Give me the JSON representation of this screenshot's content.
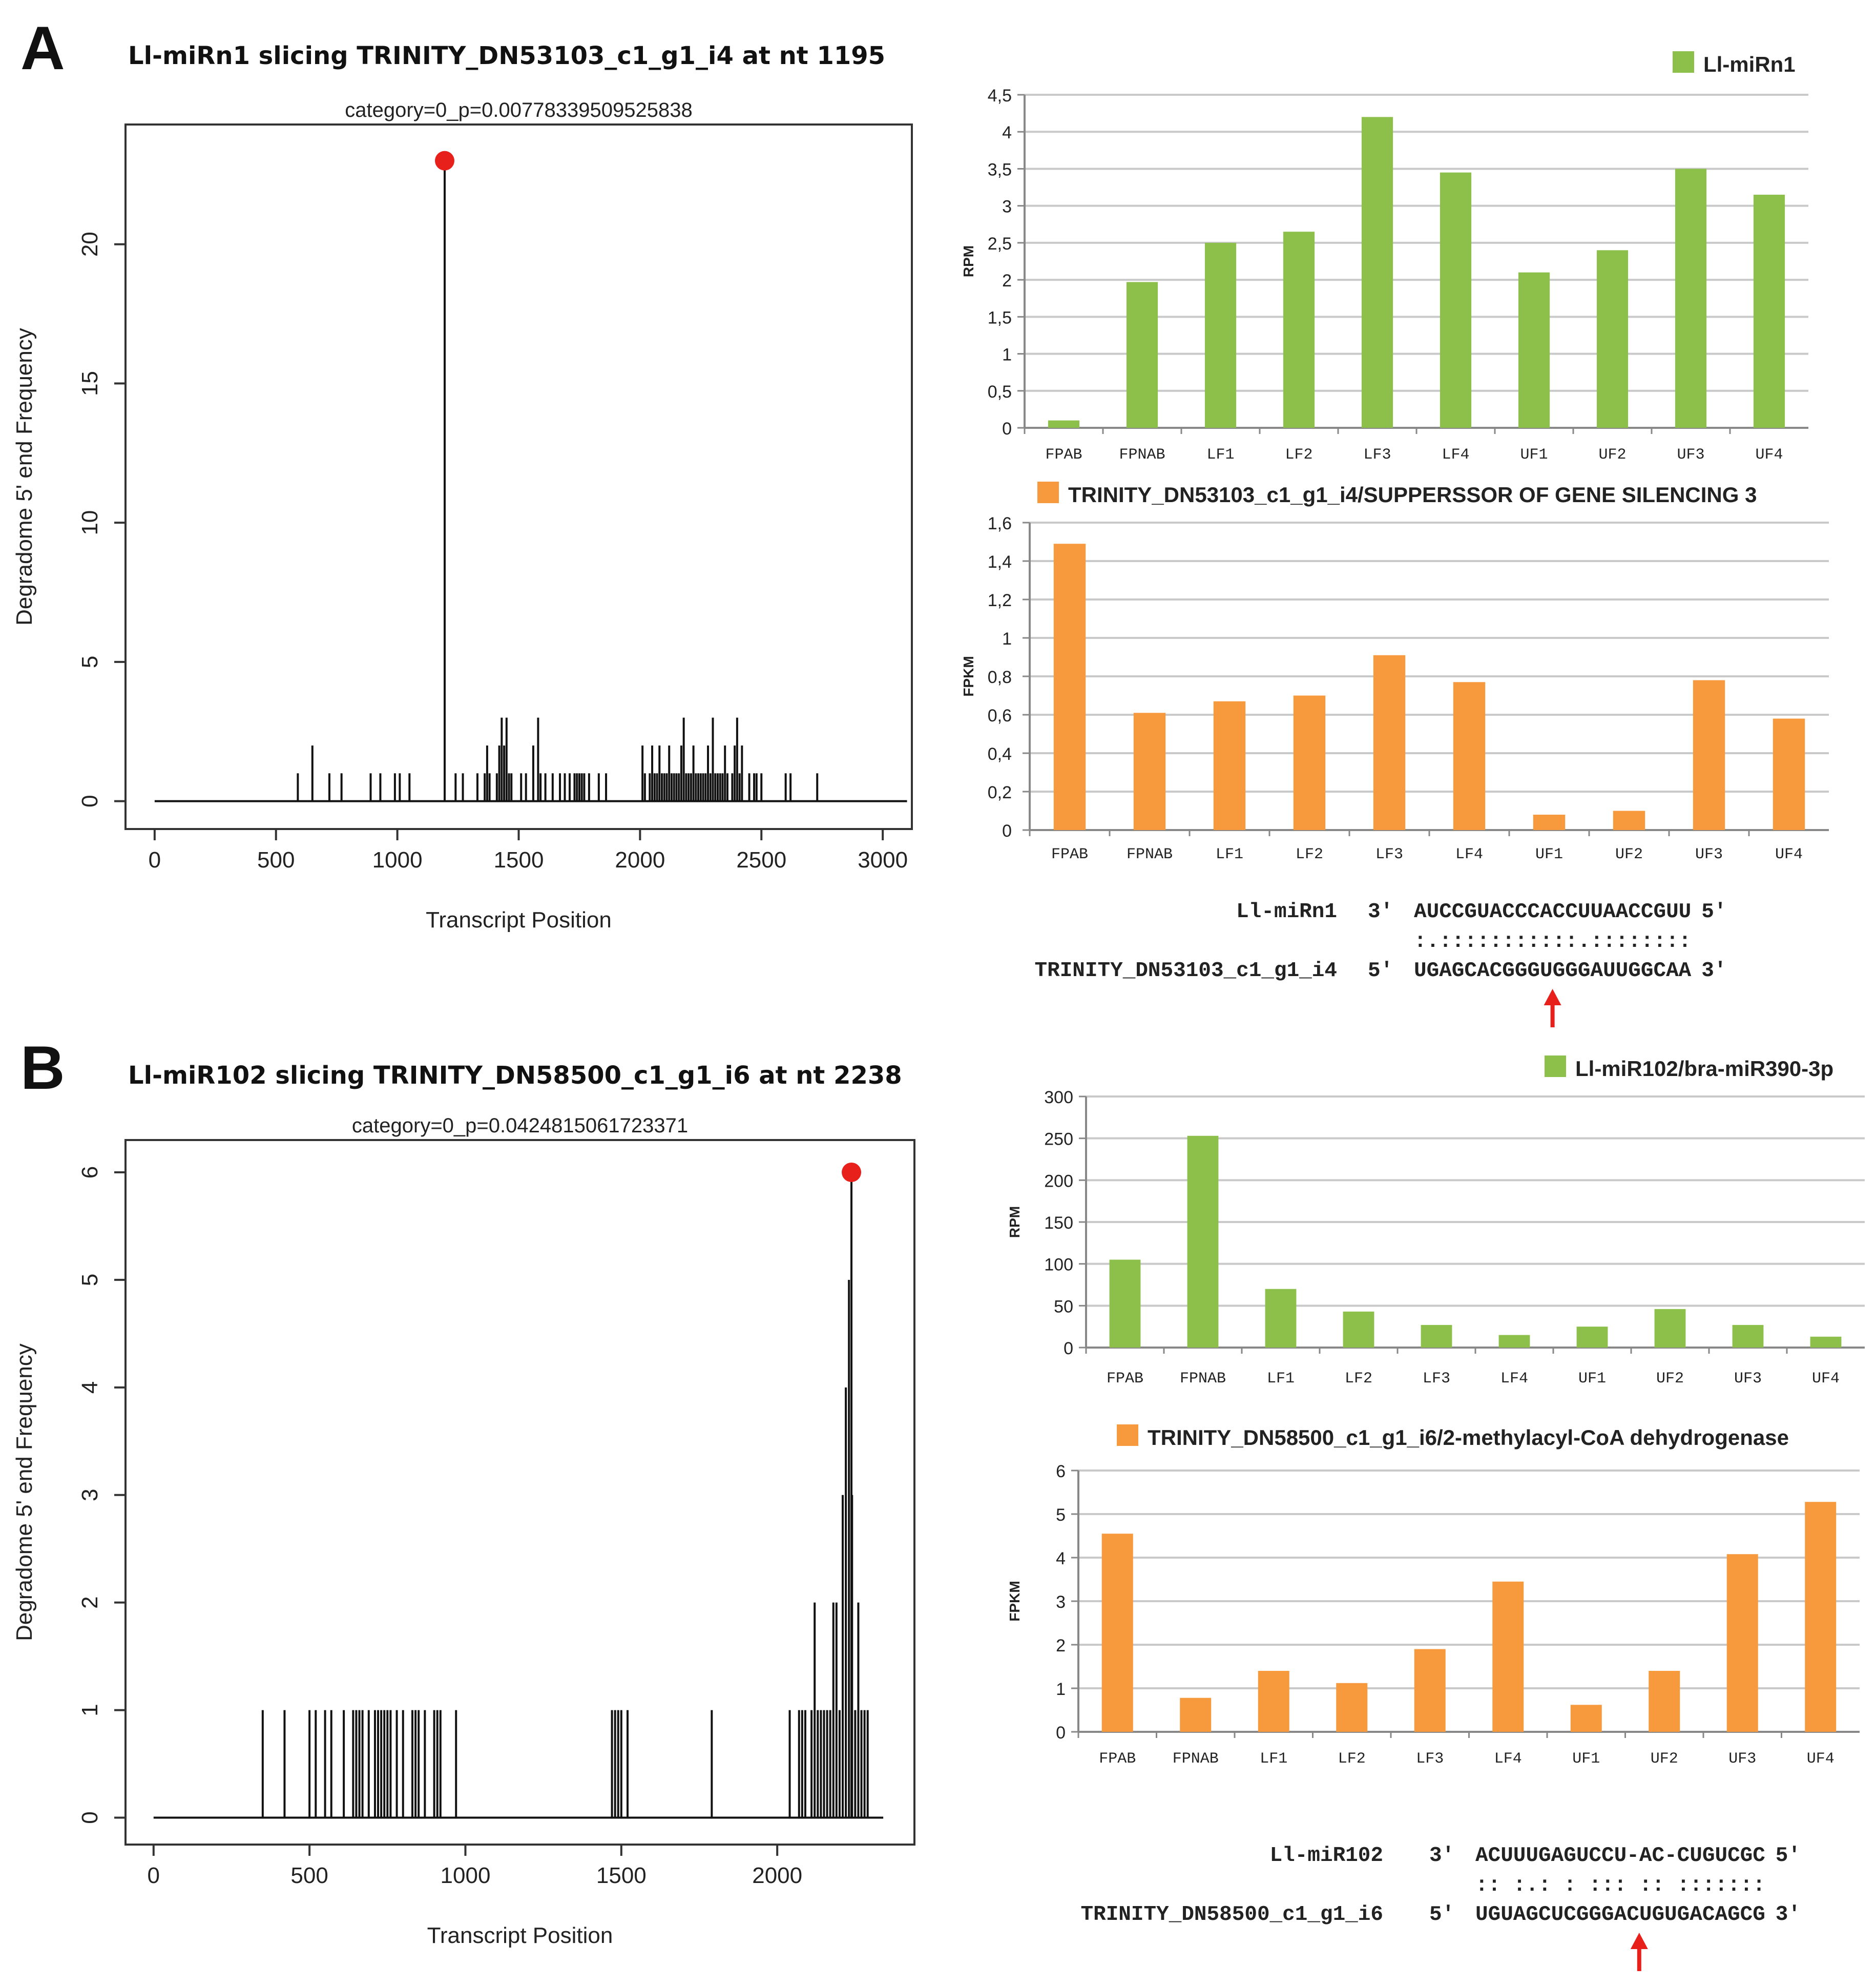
{
  "colors": {
    "green": "#8dc04b",
    "orange": "#f79a3e",
    "red": "#e8201c",
    "black": "#111111",
    "grid": "#c9c9c9"
  },
  "panels": [
    {
      "letter": "A",
      "title": "Ll-miRn1 slicing TRINITY_DN53103_c1_g1_i4 at nt 1195"
    },
    {
      "letter": "B",
      "title": "Ll-miR102 slicing TRINITY_DN58500_c1_g1_i6 at nt 2238"
    }
  ],
  "alignments": [
    {
      "mirna_name": "Ll-miRn1",
      "mirna_end3": "3′",
      "mirna_seq": "AUCCGUACCCACCUUAACCGUU",
      "mirna_end5": "5′",
      "pairing": ":.:::::::::::.::::::::",
      "target_name": "TRINITY_DN53103_c1_g1_i4",
      "target_end5": "5′",
      "target_seq": "UGAGCACGGGUGGGAUUGGCAA",
      "target_end3": "3′",
      "arrow_after_index": 11
    },
    {
      "mirna_name": "Ll-miR102",
      "mirna_end3": "3′",
      "mirna_seq": "ACUUUGAGUCCU-AC-CUGUCGC",
      "mirna_end5": "5′",
      "pairing": ":: :.: : ::: :: :::::::",
      "target_name": "TRINITY_DN58500_c1_g1_i6",
      "target_end5": "5′",
      "target_seq": "UGUAGCUCGGGACUGUGACAGCG",
      "target_end3": "3′",
      "arrow_after_index": 13
    }
  ],
  "chart_data": [
    {
      "id": "A_tplot",
      "type": "bar",
      "title": "category=0_p=0.00778339509525838",
      "xlabel": "Transcript Position",
      "ylabel": "Degradome 5' end Frequency",
      "xlim": [
        -120,
        3120
      ],
      "ylim": [
        -1,
        24.3
      ],
      "xticks": [
        0,
        500,
        1000,
        1500,
        2000,
        2500,
        3000
      ],
      "yticks": [
        0,
        5,
        10,
        15,
        20
      ],
      "baseline_end": 3100,
      "highlight": {
        "x": 1195,
        "y": 23
      },
      "points": [
        [
          590,
          1
        ],
        [
          650,
          2
        ],
        [
          720,
          1
        ],
        [
          770,
          1
        ],
        [
          890,
          1
        ],
        [
          930,
          1
        ],
        [
          990,
          1
        ],
        [
          1010,
          1
        ],
        [
          1050,
          1
        ],
        [
          1195,
          23
        ],
        [
          1240,
          1
        ],
        [
          1270,
          1
        ],
        [
          1330,
          1
        ],
        [
          1360,
          1
        ],
        [
          1370,
          2
        ],
        [
          1380,
          1
        ],
        [
          1410,
          1
        ],
        [
          1420,
          2
        ],
        [
          1430,
          3
        ],
        [
          1440,
          2
        ],
        [
          1450,
          3
        ],
        [
          1460,
          1
        ],
        [
          1470,
          1
        ],
        [
          1510,
          1
        ],
        [
          1530,
          1
        ],
        [
          1560,
          2
        ],
        [
          1580,
          3
        ],
        [
          1590,
          1
        ],
        [
          1610,
          1
        ],
        [
          1640,
          1
        ],
        [
          1670,
          1
        ],
        [
          1690,
          1
        ],
        [
          1710,
          1
        ],
        [
          1730,
          1
        ],
        [
          1740,
          1
        ],
        [
          1750,
          1
        ],
        [
          1760,
          1
        ],
        [
          1770,
          1
        ],
        [
          1790,
          1
        ],
        [
          1830,
          1
        ],
        [
          1860,
          1
        ],
        [
          2010,
          2
        ],
        [
          2020,
          1
        ],
        [
          2040,
          1
        ],
        [
          2050,
          2
        ],
        [
          2060,
          1
        ],
        [
          2070,
          1
        ],
        [
          2080,
          2
        ],
        [
          2090,
          1
        ],
        [
          2100,
          1
        ],
        [
          2110,
          1
        ],
        [
          2120,
          2
        ],
        [
          2130,
          1
        ],
        [
          2140,
          1
        ],
        [
          2150,
          1
        ],
        [
          2160,
          1
        ],
        [
          2170,
          2
        ],
        [
          2180,
          3
        ],
        [
          2190,
          1
        ],
        [
          2200,
          1
        ],
        [
          2210,
          1
        ],
        [
          2220,
          2
        ],
        [
          2230,
          1
        ],
        [
          2240,
          1
        ],
        [
          2250,
          1
        ],
        [
          2260,
          1
        ],
        [
          2270,
          1
        ],
        [
          2280,
          2
        ],
        [
          2290,
          1
        ],
        [
          2300,
          3
        ],
        [
          2310,
          1
        ],
        [
          2320,
          1
        ],
        [
          2330,
          1
        ],
        [
          2340,
          1
        ],
        [
          2350,
          2
        ],
        [
          2360,
          1
        ],
        [
          2380,
          1
        ],
        [
          2390,
          2
        ],
        [
          2400,
          3
        ],
        [
          2410,
          1
        ],
        [
          2420,
          2
        ],
        [
          2450,
          1
        ],
        [
          2470,
          1
        ],
        [
          2480,
          1
        ],
        [
          2500,
          1
        ],
        [
          2600,
          1
        ],
        [
          2620,
          1
        ],
        [
          2730,
          1
        ]
      ]
    },
    {
      "id": "A_mirna",
      "type": "bar",
      "legend": "Ll-miRn1",
      "legend_position": "top-right",
      "ylabel": "RPM",
      "categories": [
        "FPAB",
        "FPNAB",
        "LF1",
        "LF2",
        "LF3",
        "LF4",
        "UF1",
        "UF2",
        "UF3",
        "UF4"
      ],
      "values": [
        0.1,
        1.97,
        2.5,
        2.65,
        4.2,
        3.45,
        2.1,
        2.4,
        3.5,
        3.15
      ],
      "ylim": [
        0,
        4.5
      ],
      "yticks": [
        "0",
        "0,5",
        "1",
        "1,5",
        "2",
        "2,5",
        "3",
        "3,5",
        "4",
        "4,5"
      ],
      "color": "green"
    },
    {
      "id": "A_target",
      "type": "bar",
      "legend": "TRINITY_DN53103_c1_g1_i4/SUPPERSSOR OF GENE SILENCING 3",
      "legend_position": "top",
      "ylabel": "FPKM",
      "categories": [
        "FPAB",
        "FPNAB",
        "LF1",
        "LF2",
        "LF3",
        "LF4",
        "UF1",
        "UF2",
        "UF3",
        "UF4"
      ],
      "values": [
        1.49,
        0.61,
        0.67,
        0.7,
        0.91,
        0.77,
        0.08,
        0.1,
        0.78,
        0.58
      ],
      "ylim": [
        0,
        1.6
      ],
      "yticks": [
        "0",
        "0,2",
        "0,4",
        "0,6",
        "0,8",
        "1",
        "1,2",
        "1,4",
        "1,6"
      ],
      "color": "orange"
    },
    {
      "id": "B_tplot",
      "type": "bar",
      "title": "category=0_p=0.0424815061723371",
      "xlabel": "Transcript Position",
      "ylabel": "Degradome 5' end Frequency",
      "xlim": [
        -90,
        2440
      ],
      "ylim": [
        -0.25,
        6.3
      ],
      "xticks": [
        0,
        500,
        1000,
        1500,
        2000
      ],
      "yticks": [
        0,
        1,
        2,
        3,
        4,
        5,
        6
      ],
      "baseline_end": 2340,
      "highlight": {
        "x": 2238,
        "y": 6
      },
      "points": [
        [
          350,
          1
        ],
        [
          420,
          1
        ],
        [
          500,
          1
        ],
        [
          520,
          1
        ],
        [
          550,
          1
        ],
        [
          570,
          1
        ],
        [
          610,
          1
        ],
        [
          640,
          1
        ],
        [
          650,
          1
        ],
        [
          660,
          1
        ],
        [
          670,
          1
        ],
        [
          690,
          1
        ],
        [
          710,
          1
        ],
        [
          720,
          1
        ],
        [
          730,
          1
        ],
        [
          740,
          1
        ],
        [
          750,
          1
        ],
        [
          760,
          1
        ],
        [
          780,
          1
        ],
        [
          800,
          1
        ],
        [
          830,
          1
        ],
        [
          840,
          1
        ],
        [
          850,
          1
        ],
        [
          870,
          1
        ],
        [
          900,
          1
        ],
        [
          910,
          1
        ],
        [
          920,
          1
        ],
        [
          970,
          1
        ],
        [
          1470,
          1
        ],
        [
          1480,
          1
        ],
        [
          1490,
          1
        ],
        [
          1500,
          1
        ],
        [
          1520,
          1
        ],
        [
          1790,
          1
        ],
        [
          2040,
          1
        ],
        [
          2070,
          1
        ],
        [
          2080,
          1
        ],
        [
          2090,
          1
        ],
        [
          2110,
          1
        ],
        [
          2120,
          2
        ],
        [
          2130,
          1
        ],
        [
          2140,
          1
        ],
        [
          2150,
          1
        ],
        [
          2160,
          1
        ],
        [
          2170,
          1
        ],
        [
          2180,
          2
        ],
        [
          2190,
          2
        ],
        [
          2200,
          1
        ],
        [
          2210,
          3
        ],
        [
          2220,
          4
        ],
        [
          2230,
          5
        ],
        [
          2238,
          6
        ],
        [
          2240,
          3
        ],
        [
          2250,
          1
        ],
        [
          2260,
          2
        ],
        [
          2270,
          1
        ],
        [
          2280,
          1
        ],
        [
          2290,
          1
        ]
      ]
    },
    {
      "id": "B_mirna",
      "type": "bar",
      "legend": "Ll-miR102/bra-miR390-3p",
      "legend_position": "top-right",
      "ylabel": "RPM",
      "categories": [
        "FPAB",
        "FPNAB",
        "LF1",
        "LF2",
        "LF3",
        "LF4",
        "UF1",
        "UF2",
        "UF3",
        "UF4"
      ],
      "values": [
        105,
        253,
        70,
        43,
        27,
        15,
        25,
        46,
        27,
        13
      ],
      "ylim": [
        0,
        300
      ],
      "yticks": [
        "0",
        "50",
        "100",
        "150",
        "200",
        "250",
        "300"
      ],
      "color": "green"
    },
    {
      "id": "B_target",
      "type": "bar",
      "legend": "TRINITY_DN58500_c1_g1_i6/2-methylacyl-CoA dehydrogenase",
      "legend_position": "top",
      "ylabel": "FPKM",
      "categories": [
        "FPAB",
        "FPNAB",
        "LF1",
        "LF2",
        "LF3",
        "LF4",
        "UF1",
        "UF2",
        "UF3",
        "UF4"
      ],
      "values": [
        4.55,
        0.78,
        1.4,
        1.12,
        1.9,
        3.45,
        0.62,
        1.4,
        4.08,
        5.28
      ],
      "ylim": [
        0,
        6
      ],
      "yticks": [
        "0",
        "1",
        "2",
        "3",
        "4",
        "5",
        "6"
      ],
      "color": "orange"
    }
  ]
}
